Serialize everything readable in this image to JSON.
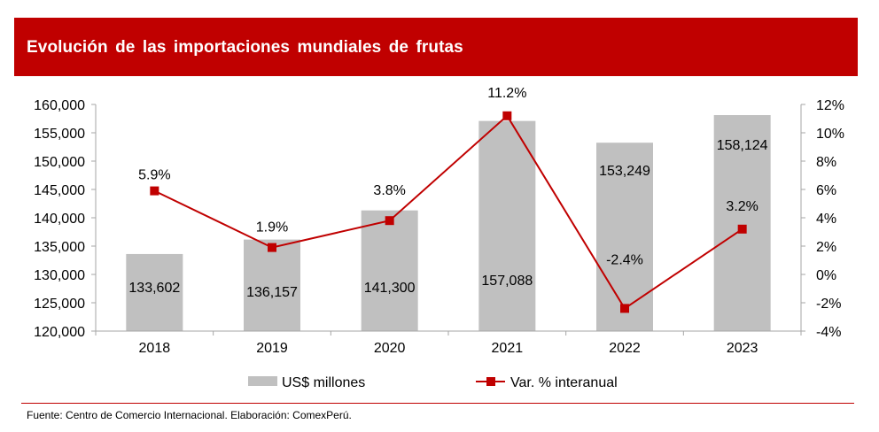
{
  "title": "Evolución de las importaciones mundiales de frutas",
  "source": "Fuente: Centro de Comercio Internacional. Elaboración: ComexPerú.",
  "colors": {
    "header": "#c00000",
    "bar": "#c0c0c0",
    "line": "#c00000",
    "axis": "#a6a6a6"
  },
  "chart_data": {
    "type": "bar",
    "categories": [
      "2018",
      "2019",
      "2020",
      "2021",
      "2022",
      "2023"
    ],
    "series": [
      {
        "name": "US$ millones",
        "type": "bar",
        "axis": "left",
        "values": [
          133602,
          136157,
          141300,
          157088,
          153249,
          158124
        ],
        "labels": [
          "133,602",
          "136,157",
          "141,300",
          "157,088",
          "153,249",
          "158,124"
        ]
      },
      {
        "name": "Var. % interanual",
        "type": "line",
        "axis": "right",
        "values": [
          5.9,
          1.9,
          3.8,
          11.2,
          -2.4,
          3.2
        ],
        "labels": [
          "5.9%",
          "1.9%",
          "3.8%",
          "11.2%",
          "-2.4%",
          "3.2%"
        ]
      }
    ],
    "ylim": [
      120000,
      160000
    ],
    "yticks": [
      "120,000",
      "125,000",
      "130,000",
      "135,000",
      "140,000",
      "145,000",
      "150,000",
      "155,000",
      "160,000"
    ],
    "y2lim": [
      -4,
      12
    ],
    "y2ticks": [
      "-4%",
      "-2%",
      "0%",
      "2%",
      "4%",
      "6%",
      "8%",
      "10%",
      "12%"
    ],
    "legend_position": "bottom",
    "grid": false
  }
}
